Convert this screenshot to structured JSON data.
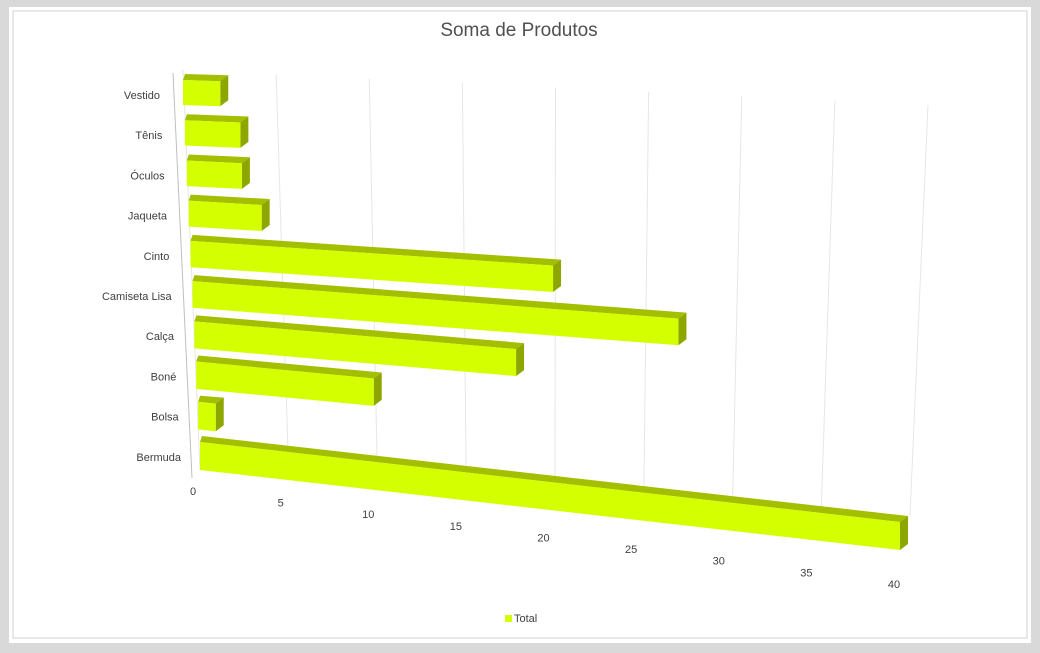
{
  "chart_data": {
    "type": "bar3d",
    "title": "Soma de Produtos",
    "categories": [
      "Vestido",
      "Tênis",
      "Óculos",
      "Jaqueta",
      "Cinto",
      "Camiseta Lisa",
      "Calça",
      "Boné",
      "Bolsa",
      "Bermuda"
    ],
    "series": [
      {
        "name": "Total",
        "color": "#d4ff00",
        "values": [
          2,
          3,
          3,
          4,
          20,
          27,
          18,
          10,
          1,
          40
        ]
      }
    ],
    "xlim": [
      0,
      40
    ],
    "xticks": [
      0,
      5,
      10,
      15,
      20,
      25,
      30,
      35,
      40
    ],
    "grid": true,
    "legend": "bottom"
  }
}
